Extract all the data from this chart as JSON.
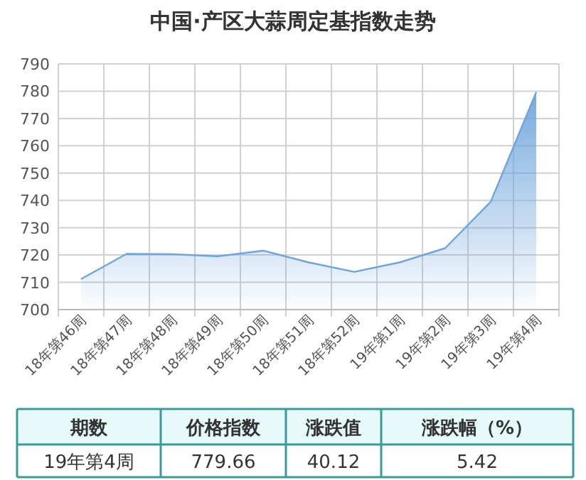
{
  "chart_data": [
    {
      "type": "area",
      "title": "中国·产区大蒜周定基指数走势",
      "categories": [
        "18年第46周",
        "18年第47周",
        "18年第48周",
        "18年第49周",
        "18年第50周",
        "18年第51周",
        "18年第52周",
        "19年第1周",
        "19年第2周",
        "19年第3周",
        "19年第4周"
      ],
      "series": [
        {
          "color": "#6fa5dc",
          "values": [
            711.2,
            720.4,
            720.3,
            719.5,
            721.6,
            717.3,
            713.8,
            717.3,
            722.5,
            739.5,
            779.66
          ]
        }
      ],
      "ylim": [
        700,
        790
      ],
      "yticks": [
        700,
        710,
        720,
        730,
        740,
        750,
        760,
        770,
        780,
        790
      ],
      "grid": true
    },
    {
      "type": "other",
      "annotations": [
        "期数",
        "价格指数",
        "涨跌值",
        "涨跌幅（%）",
        "19年第4周",
        "779.66",
        "40.12",
        "5.42"
      ]
    }
  ]
}
